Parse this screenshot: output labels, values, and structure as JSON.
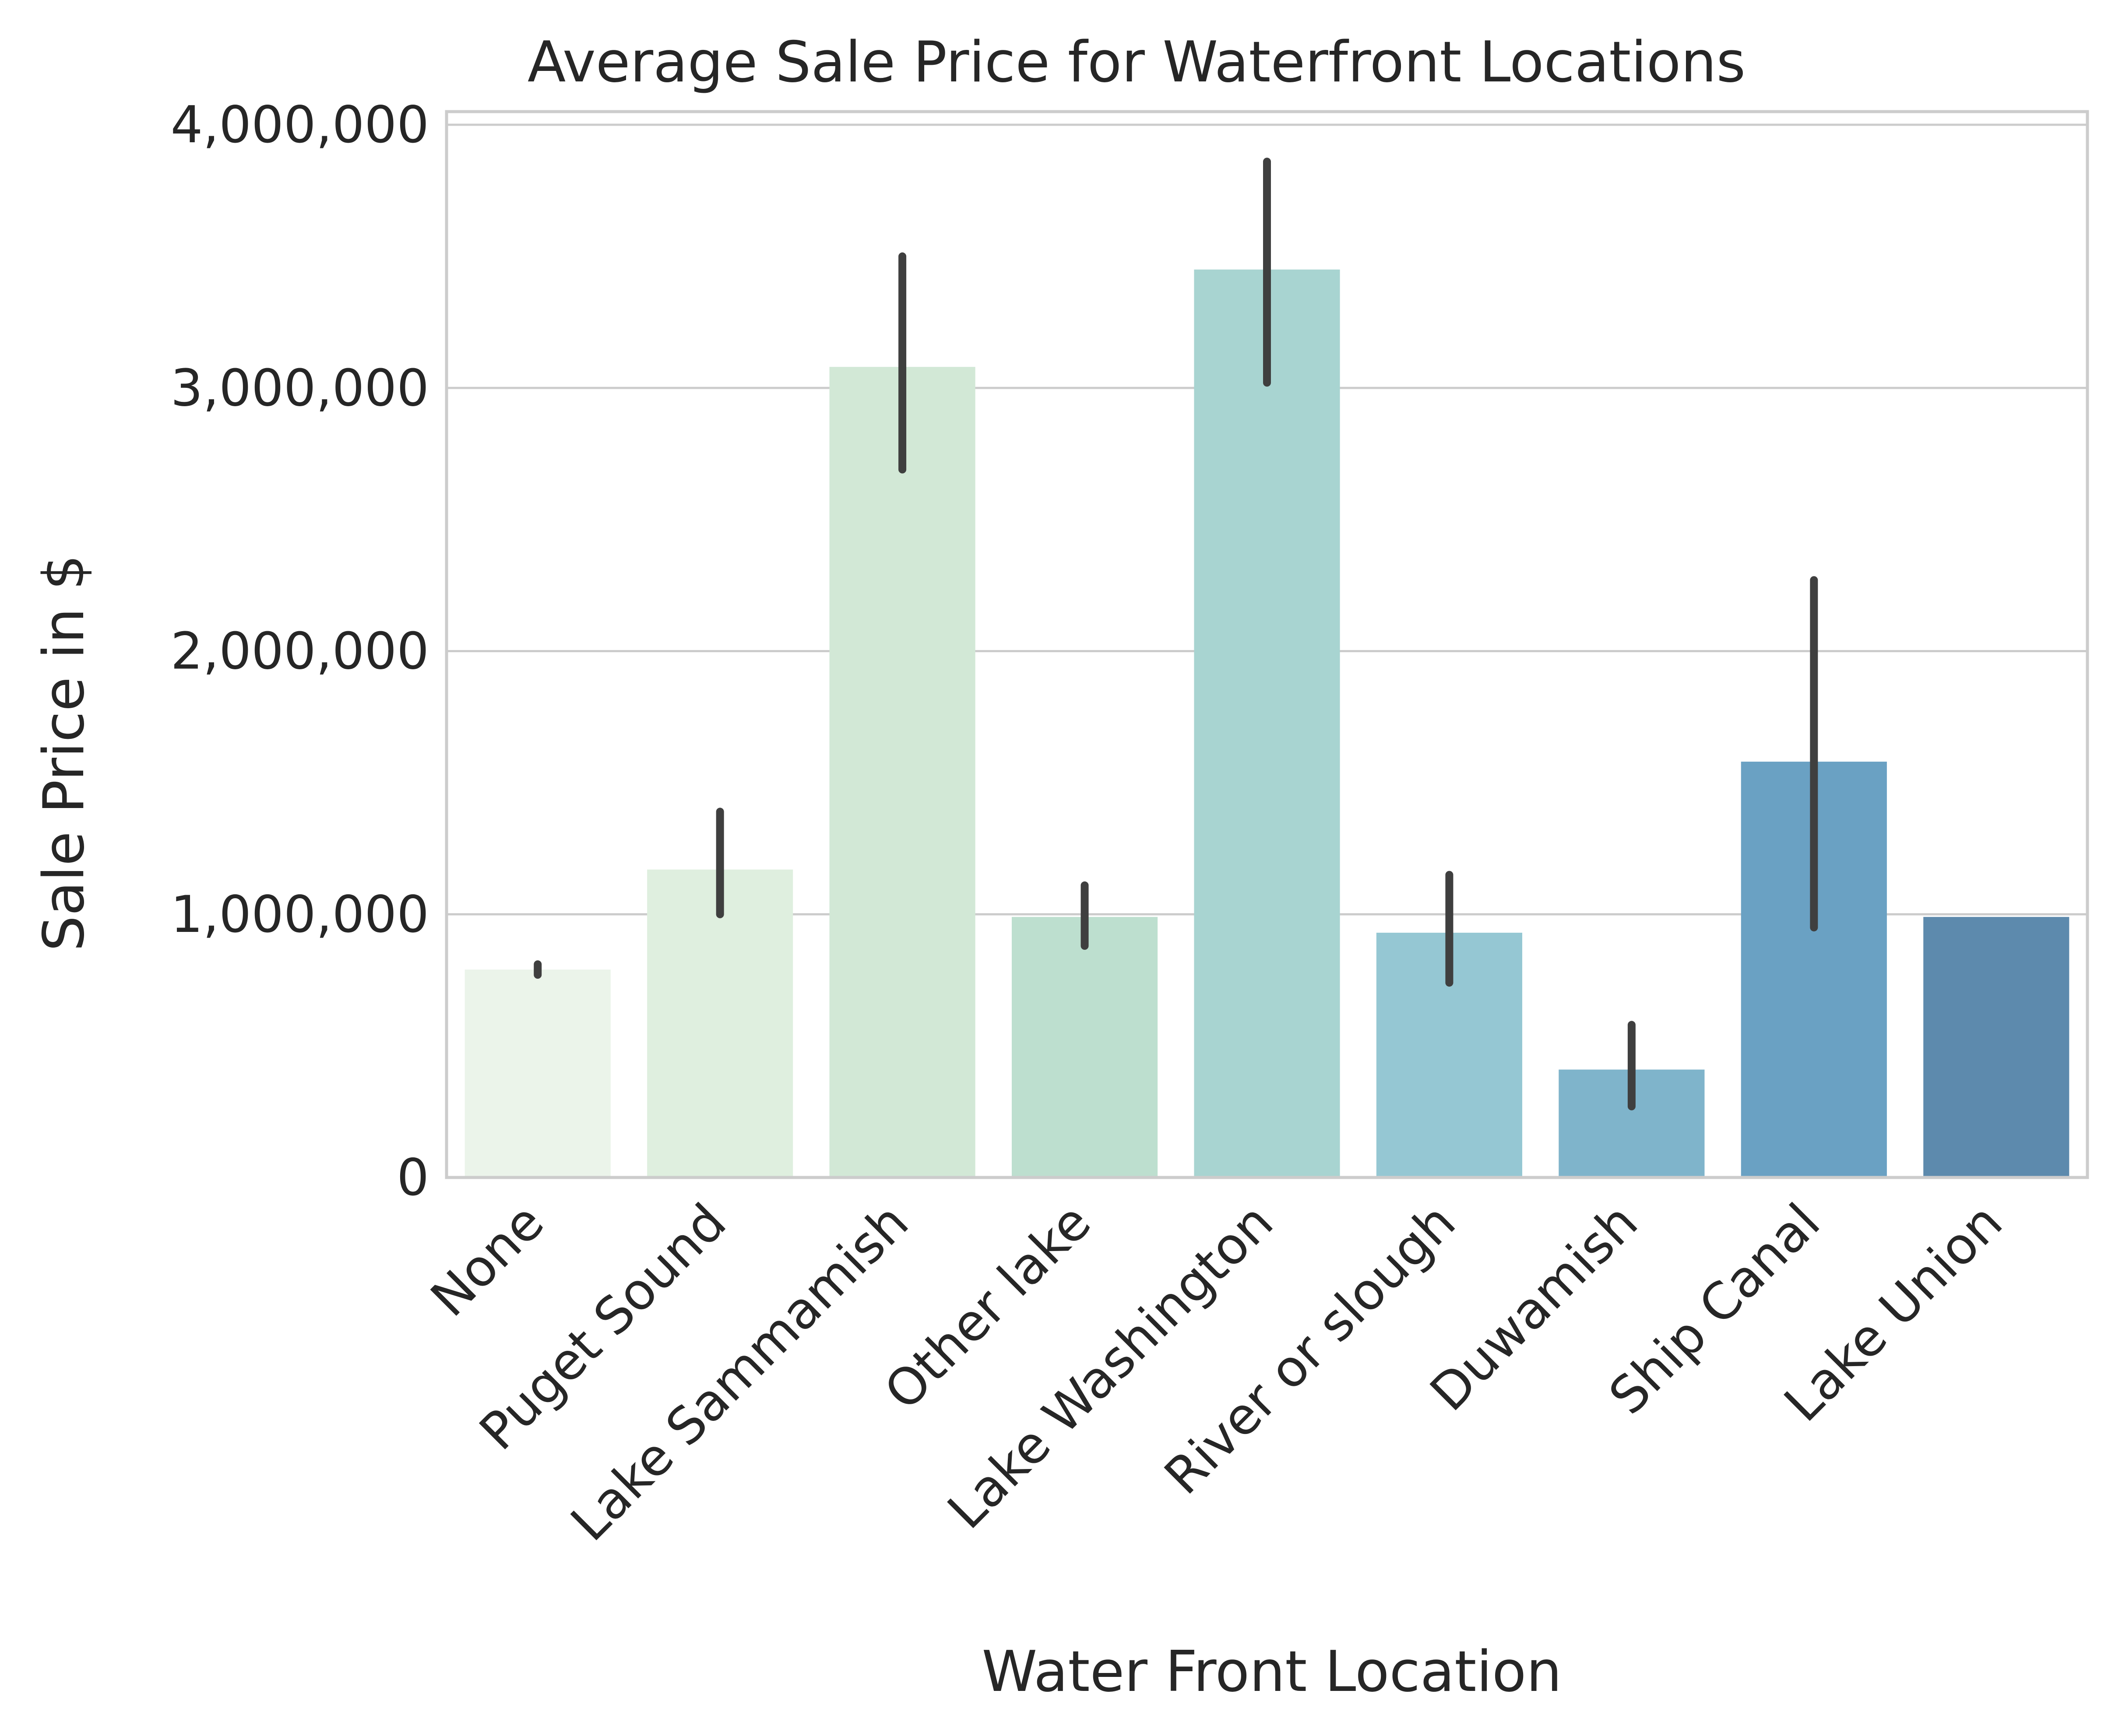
{
  "chart_data": {
    "type": "bar",
    "title": "Average Sale Price for Waterfront Locations",
    "xlabel": "Water Front Location",
    "ylabel": "Sale Price in $",
    "categories": [
      "None",
      "Puget Sound",
      "Lake Sammamish",
      "Other lake",
      "Lake Washington",
      "River or slough",
      "Duwamish",
      "Ship Canal",
      "Lake Union"
    ],
    "values": [
      790000,
      1170000,
      3080000,
      990000,
      3450000,
      930000,
      410000,
      1580000,
      990000
    ],
    "error_bars": [
      [
        770000,
        810000
      ],
      [
        1000000,
        1390000
      ],
      [
        2690000,
        3500000
      ],
      [
        880000,
        1110000
      ],
      [
        3020000,
        3860000
      ],
      [
        740000,
        1150000
      ],
      [
        270000,
        580000
      ],
      [
        950000,
        2270000
      ],
      [
        990000,
        990000
      ]
    ],
    "colors": [
      "#ebf4ea",
      "#dfefdf",
      "#d2e8d6",
      "#bddfcf",
      "#a8d4d1",
      "#95c7d3",
      "#7fb4cb",
      "#6aa1c3",
      "#5d8aad"
    ],
    "ylim": [
      0,
      4050000
    ],
    "yticks": [
      0,
      1000000,
      2000000,
      3000000,
      4000000
    ],
    "ytick_labels": [
      "0",
      "1,000,000",
      "2,000,000",
      "3,000,000",
      "4,000,000"
    ],
    "grid": true,
    "errorbar_color": "#3f3f3f",
    "gridline_color": "#cccccc"
  }
}
